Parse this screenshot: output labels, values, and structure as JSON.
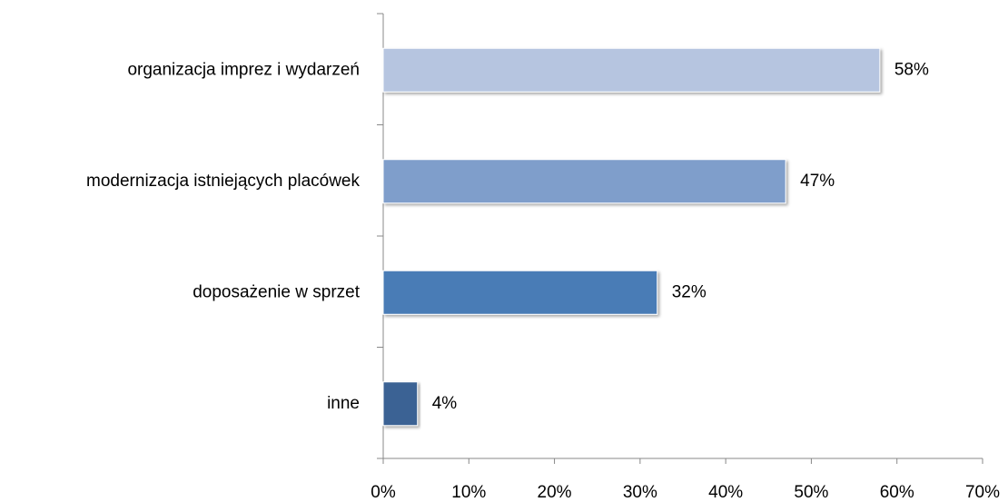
{
  "chart_data": {
    "type": "bar",
    "orientation": "horizontal",
    "categories": [
      "organizacja imprez i wydarzeń",
      "modernizacja istniejących placówek",
      "doposażenie w sprzet",
      "inne"
    ],
    "values": [
      58,
      47,
      32,
      4
    ],
    "value_labels": [
      "58%",
      "47%",
      "32%",
      "4%"
    ],
    "colors": [
      "#b6c5e0",
      "#7f9ecb",
      "#4a7bb6",
      "#3b6294"
    ],
    "xlim": [
      0,
      70
    ],
    "xticks": [
      {
        "value": 0,
        "label": "0%"
      },
      {
        "value": 10,
        "label": "10%"
      },
      {
        "value": 20,
        "label": "20%"
      },
      {
        "value": 30,
        "label": "30%"
      },
      {
        "value": 40,
        "label": "40%"
      },
      {
        "value": 50,
        "label": "50%"
      },
      {
        "value": 60,
        "label": "60%"
      },
      {
        "value": 70,
        "label": "70%"
      }
    ],
    "grid": false
  }
}
